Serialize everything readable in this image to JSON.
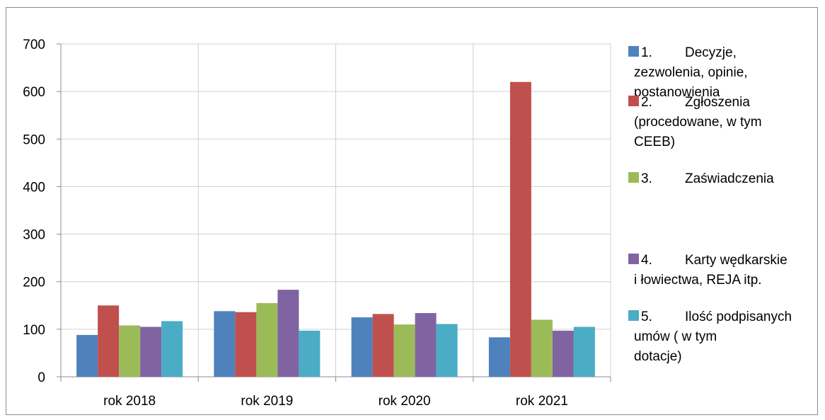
{
  "chart_data": {
    "type": "bar",
    "title": "",
    "xlabel": "",
    "ylabel": "",
    "categories": [
      "rok 2018",
      "rok 2019",
      "rok 2020",
      "rok 2021"
    ],
    "ylim": [
      0,
      700
    ],
    "yticks": [
      0,
      100,
      200,
      300,
      400,
      500,
      600,
      700
    ],
    "grid": true,
    "legend_position": "right",
    "series": [
      {
        "name": "1.\tDecyzje, zezwolenia, opinie, postanowienia",
        "legend_lines": [
          "1.",
          "Decyzje,",
          "zezwolenia, opinie,",
          "postanowienia"
        ],
        "color": "#4F81BD",
        "values": [
          88,
          138,
          125,
          83
        ]
      },
      {
        "name": "2.\tZgłoszenia (procedowane, w tym CEEB)",
        "legend_lines": [
          "2.",
          "Zgłoszenia",
          "(procedowane, w tym",
          "CEEB)"
        ],
        "color": "#C0504D",
        "values": [
          150,
          136,
          132,
          620
        ]
      },
      {
        "name": "3.\tZaświadczenia",
        "legend_lines": [
          "3.",
          "Zaświadczenia"
        ],
        "color": "#9BBB59",
        "values": [
          108,
          155,
          110,
          120
        ]
      },
      {
        "name": "4.\tKarty wędkarskie i łowiectwa, REJA itp.",
        "legend_lines": [
          "4.",
          "Karty wędkarskie",
          "i łowiectwa, REJA itp."
        ],
        "color": "#8064A2",
        "values": [
          105,
          183,
          134,
          97
        ]
      },
      {
        "name": "5.\tIlość podpisanych umów ( w tym dotacje)",
        "legend_lines": [
          "5.",
          "Ilość podpisanych",
          "umów ( w tym",
          "dotacje)"
        ],
        "color": "#4BACC6",
        "values": [
          117,
          97,
          111,
          105
        ]
      }
    ]
  }
}
